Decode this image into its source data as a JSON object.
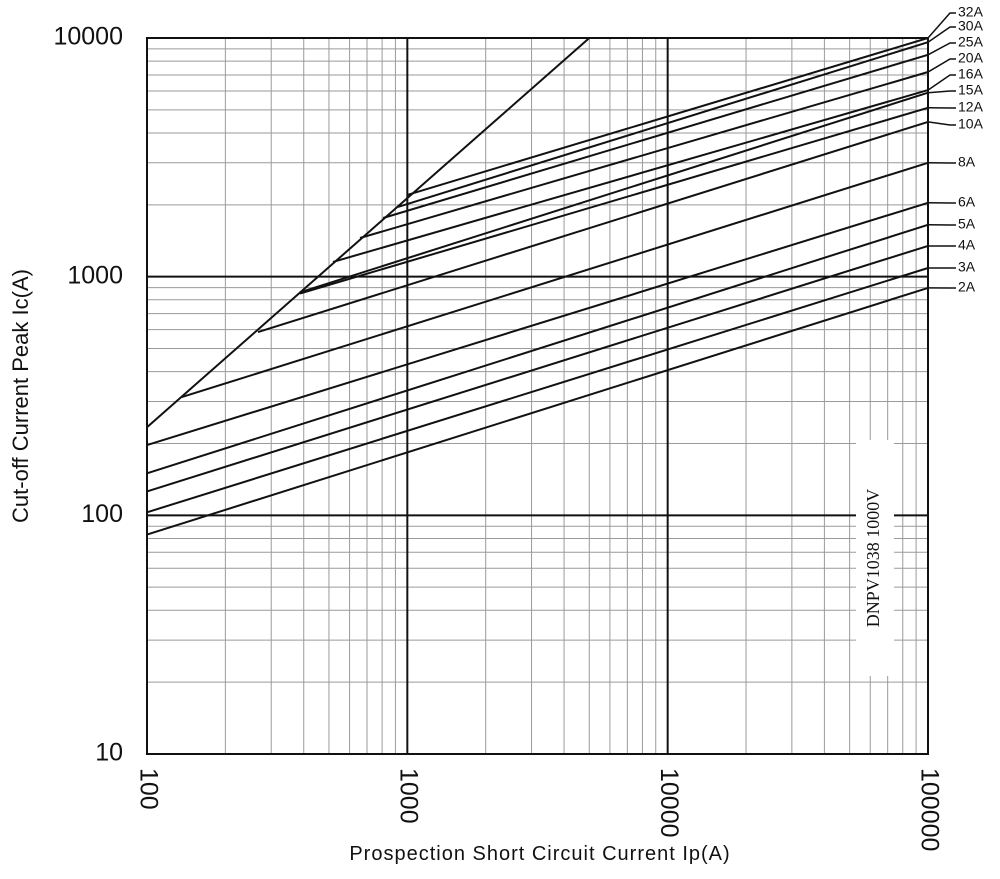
{
  "chart_data": {
    "type": "line",
    "xlabel": "Prospection Short Circuit Current Ip(A)",
    "ylabel": "Cut-off Current Peak Ic(A)",
    "annotation": "DNPV1038 1000V",
    "log_x": true,
    "log_y": true,
    "grid": true,
    "minor_grid": true,
    "xlim": [
      100,
      100000
    ],
    "xticks": [
      100,
      1000,
      10000,
      100000
    ],
    "ylim": [
      10,
      10000
    ],
    "yticks": [
      10,
      100,
      1000,
      10000
    ],
    "boundary": {
      "color": "#111111",
      "x": [
        100,
        5000
      ],
      "values": [
        234,
        10000
      ]
    },
    "series": [
      {
        "name": "32A",
        "color": "#111111",
        "x": [
          1000,
          100000
        ],
        "values": [
          2200,
          10000
        ]
      },
      {
        "name": "30A",
        "color": "#111111",
        "x": [
          921,
          100000
        ],
        "values": [
          1960,
          9600
        ]
      },
      {
        "name": "25A",
        "color": "#111111",
        "x": [
          807,
          100000
        ],
        "values": [
          1762,
          8500
        ]
      },
      {
        "name": "20A",
        "color": "#111111",
        "x": [
          658,
          100000
        ],
        "values": [
          1452,
          7200
        ]
      },
      {
        "name": "16A",
        "color": "#111111",
        "x": [
          518,
          100000
        ],
        "values": [
          1153,
          6050
        ]
      },
      {
        "name": "15A",
        "color": "#111111",
        "x": [
          387,
          100000
        ],
        "values": [
          860,
          5900
        ]
      },
      {
        "name": "12A",
        "color": "#111111",
        "x": [
          387,
          100000
        ],
        "values": [
          850,
          5100
        ]
      },
      {
        "name": "10A",
        "color": "#111111",
        "x": [
          267,
          100000
        ],
        "values": [
          586,
          4450
        ]
      },
      {
        "name": "8A",
        "color": "#111111",
        "x": [
          136,
          100000
        ],
        "values": [
          313,
          3000
        ]
      },
      {
        "name": "6A",
        "color": "#111111",
        "x": [
          100,
          100000
        ],
        "values": [
          197,
          2040
        ]
      },
      {
        "name": "5A",
        "color": "#111111",
        "x": [
          100,
          100000
        ],
        "values": [
          150,
          1650
        ]
      },
      {
        "name": "4A",
        "color": "#111111",
        "x": [
          100,
          100000
        ],
        "values": [
          126,
          1345
        ]
      },
      {
        "name": "3A",
        "color": "#111111",
        "x": [
          100,
          100000
        ],
        "values": [
          103,
          1087
        ]
      },
      {
        "name": "2A",
        "color": "#111111",
        "x": [
          100,
          100000
        ],
        "values": [
          83,
          897
        ]
      }
    ]
  }
}
